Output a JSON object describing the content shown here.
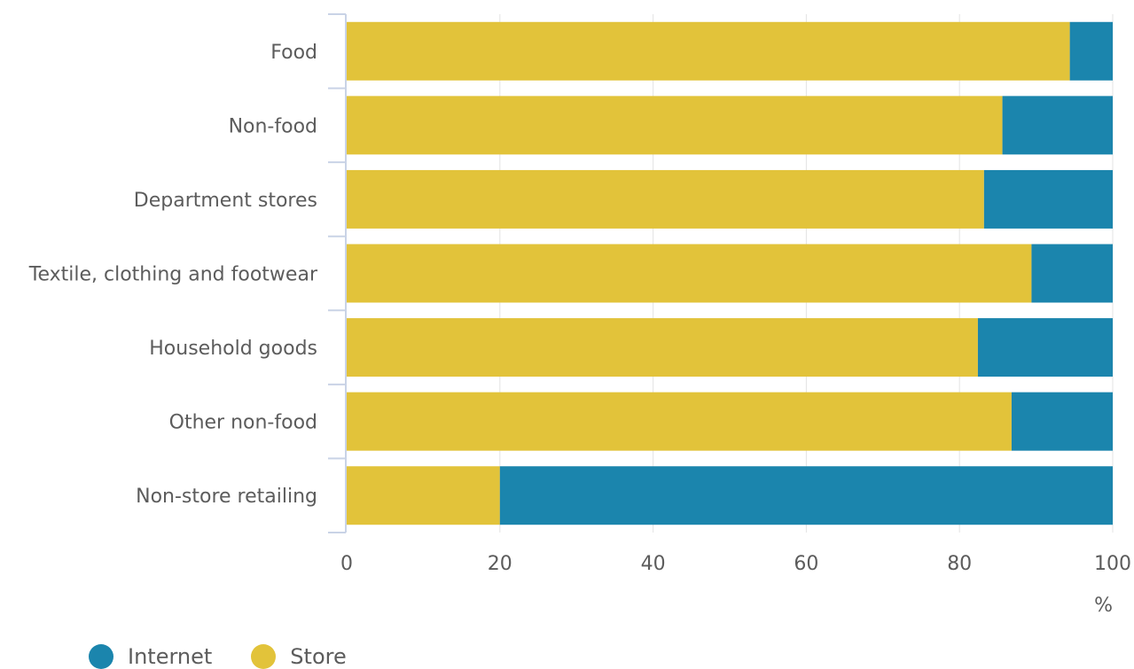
{
  "chart_data": {
    "type": "bar",
    "orientation": "horizontal",
    "stacked": true,
    "categories": [
      "Food",
      "Non-food",
      "Department stores",
      "Textile, clothing and footwear",
      "Household goods",
      "Other non-food",
      "Non-store retailing"
    ],
    "series": [
      {
        "name": "Store",
        "color": "#e2c33a",
        "values": [
          94.4,
          85.6,
          83.2,
          89.4,
          82.4,
          86.8,
          20
        ]
      },
      {
        "name": "Internet",
        "color": "#1b85ad",
        "values": [
          5.6,
          14.4,
          16.8,
          10.6,
          17.6,
          13.2,
          80
        ]
      }
    ],
    "xlim": [
      0,
      100
    ],
    "xticks": [
      0,
      20,
      40,
      60,
      80,
      100
    ],
    "x_unit": "%",
    "grid": true,
    "legend": {
      "position": "bottom-left",
      "items": [
        {
          "label": "Internet",
          "color": "#1b85ad"
        },
        {
          "label": "Store",
          "color": "#e2c33a"
        }
      ]
    }
  }
}
